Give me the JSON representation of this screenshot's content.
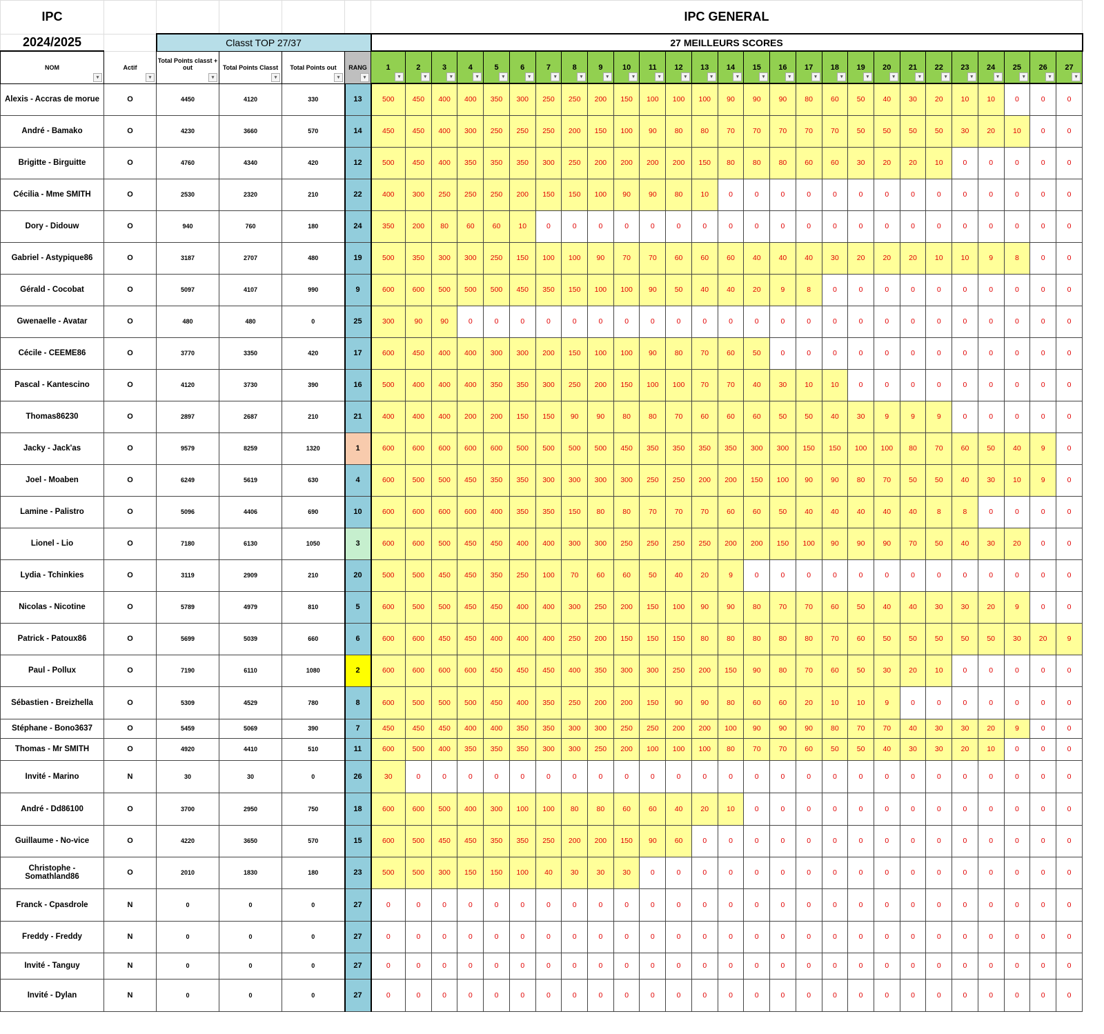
{
  "title": "IPC",
  "season": "2024/2025",
  "general_title": "IPC GENERAL",
  "classt_label": "Classt TOP 27/37",
  "best_label": "27 MEILLEURS SCORES",
  "headers": {
    "nom": "NOM",
    "actif": "Actif",
    "total_out": "Total Points classt + out",
    "classt": "Total Points Classt",
    "out": "Total Points out",
    "rang": "RANG",
    "scores": [
      "1",
      "2",
      "3",
      "4",
      "5",
      "6",
      "7",
      "8",
      "9",
      "10",
      "11",
      "12",
      "13",
      "14",
      "15",
      "16",
      "17",
      "18",
      "19",
      "20",
      "21",
      "22",
      "23",
      "24",
      "25",
      "26",
      "27"
    ]
  },
  "colors": {
    "score_header": "#92d050",
    "rang_header": "#bfbfbf",
    "rang": "#92cddc",
    "rank1": "#f8cbad",
    "rank2": "#ffff00",
    "rank3": "#c6efce",
    "score_filled": "#ffff99",
    "score_text": "#e00000",
    "classt_band": "#b7dee8"
  },
  "rows": [
    {
      "name": "Alexis - Accras de morue",
      "actif": "O",
      "total": "4450",
      "classt": "4120",
      "out": "330",
      "rang": "13",
      "scores": [
        500,
        450,
        400,
        400,
        350,
        300,
        250,
        250,
        200,
        150,
        100,
        100,
        100,
        90,
        90,
        90,
        80,
        60,
        50,
        40,
        30,
        20,
        10,
        10,
        0,
        0,
        0
      ]
    },
    {
      "name": "André - Bamako",
      "actif": "O",
      "total": "4230",
      "classt": "3660",
      "out": "570",
      "rang": "14",
      "scores": [
        450,
        450,
        400,
        300,
        250,
        250,
        250,
        200,
        150,
        100,
        90,
        80,
        80,
        70,
        70,
        70,
        70,
        70,
        50,
        50,
        50,
        50,
        30,
        20,
        10,
        0,
        0
      ]
    },
    {
      "name": "Brigitte - Birguitte",
      "actif": "O",
      "total": "4760",
      "classt": "4340",
      "out": "420",
      "rang": "12",
      "scores": [
        500,
        450,
        400,
        350,
        350,
        350,
        300,
        250,
        200,
        200,
        200,
        200,
        150,
        80,
        80,
        80,
        60,
        60,
        30,
        20,
        20,
        10,
        0,
        0,
        0,
        0,
        0
      ]
    },
    {
      "name": "Cécilia - Mme SMITH",
      "actif": "O",
      "total": "2530",
      "classt": "2320",
      "out": "210",
      "rang": "22",
      "scores": [
        400,
        300,
        250,
        250,
        250,
        200,
        150,
        150,
        100,
        90,
        90,
        80,
        10,
        0,
        0,
        0,
        0,
        0,
        0,
        0,
        0,
        0,
        0,
        0,
        0,
        0,
        0
      ]
    },
    {
      "name": "Dory - Didouw",
      "actif": "O",
      "total": "940",
      "classt": "760",
      "out": "180",
      "rang": "24",
      "scores": [
        350,
        200,
        80,
        60,
        60,
        10,
        0,
        0,
        0,
        0,
        0,
        0,
        0,
        0,
        0,
        0,
        0,
        0,
        0,
        0,
        0,
        0,
        0,
        0,
        0,
        0,
        0
      ]
    },
    {
      "name": "Gabriel - Astypique86",
      "actif": "O",
      "total": "3187",
      "classt": "2707",
      "out": "480",
      "rang": "19",
      "scores": [
        500,
        350,
        300,
        300,
        250,
        150,
        100,
        100,
        90,
        70,
        70,
        60,
        60,
        60,
        40,
        40,
        40,
        30,
        20,
        20,
        20,
        10,
        10,
        9,
        8,
        0,
        0
      ]
    },
    {
      "name": "Gérald - Cocobat",
      "actif": "O",
      "total": "5097",
      "classt": "4107",
      "out": "990",
      "rang": "9",
      "scores": [
        600,
        600,
        500,
        500,
        500,
        450,
        350,
        150,
        100,
        100,
        90,
        50,
        40,
        40,
        20,
        9,
        8,
        0,
        0,
        0,
        0,
        0,
        0,
        0,
        0,
        0,
        0
      ]
    },
    {
      "name": "Gwenaelle - Avatar",
      "actif": "O",
      "total": "480",
      "classt": "480",
      "out": "0",
      "rang": "25",
      "scores": [
        300,
        90,
        90,
        0,
        0,
        0,
        0,
        0,
        0,
        0,
        0,
        0,
        0,
        0,
        0,
        0,
        0,
        0,
        0,
        0,
        0,
        0,
        0,
        0,
        0,
        0,
        0
      ]
    },
    {
      "name": "Cécile - CEEME86",
      "actif": "O",
      "total": "3770",
      "classt": "3350",
      "out": "420",
      "rang": "17",
      "scores": [
        600,
        450,
        400,
        400,
        300,
        300,
        200,
        150,
        100,
        100,
        90,
        80,
        70,
        60,
        50,
        0,
        0,
        0,
        0,
        0,
        0,
        0,
        0,
        0,
        0,
        0,
        0
      ]
    },
    {
      "name": "Pascal - Kantescino",
      "actif": "O",
      "total": "4120",
      "classt": "3730",
      "out": "390",
      "rang": "16",
      "scores": [
        500,
        400,
        400,
        400,
        350,
        350,
        300,
        250,
        200,
        150,
        100,
        100,
        70,
        70,
        40,
        30,
        10,
        10,
        0,
        0,
        0,
        0,
        0,
        0,
        0,
        0,
        0
      ]
    },
    {
      "name": "Thomas86230",
      "actif": "O",
      "total": "2897",
      "classt": "2687",
      "out": "210",
      "rang": "21",
      "scores": [
        400,
        400,
        400,
        200,
        200,
        150,
        150,
        90,
        90,
        80,
        80,
        70,
        60,
        60,
        60,
        50,
        50,
        40,
        30,
        9,
        9,
        9,
        0,
        0,
        0,
        0,
        0
      ]
    },
    {
      "name": "Jacky - Jack'as",
      "actif": "O",
      "total": "9579",
      "classt": "8259",
      "out": "1320",
      "rang": "1",
      "scores": [
        600,
        600,
        600,
        600,
        600,
        500,
        500,
        500,
        500,
        450,
        350,
        350,
        350,
        350,
        300,
        300,
        150,
        150,
        100,
        100,
        80,
        70,
        60,
        50,
        40,
        9,
        0
      ]
    },
    {
      "name": "Joel - Moaben",
      "actif": "O",
      "total": "6249",
      "classt": "5619",
      "out": "630",
      "rang": "4",
      "scores": [
        600,
        500,
        500,
        450,
        350,
        350,
        300,
        300,
        300,
        300,
        250,
        250,
        200,
        200,
        150,
        100,
        90,
        90,
        80,
        70,
        50,
        50,
        40,
        30,
        10,
        9,
        0
      ]
    },
    {
      "name": "Lamine - Palistro",
      "actif": "O",
      "total": "5096",
      "classt": "4406",
      "out": "690",
      "rang": "10",
      "scores": [
        600,
        600,
        600,
        600,
        400,
        350,
        350,
        150,
        80,
        80,
        70,
        70,
        70,
        60,
        60,
        50,
        40,
        40,
        40,
        40,
        40,
        8,
        8,
        0,
        0,
        0,
        0
      ]
    },
    {
      "name": "Lionel - Lio",
      "actif": "O",
      "total": "7180",
      "classt": "6130",
      "out": "1050",
      "rang": "3",
      "scores": [
        600,
        600,
        500,
        450,
        450,
        400,
        400,
        300,
        300,
        250,
        250,
        250,
        250,
        200,
        200,
        150,
        100,
        90,
        90,
        90,
        70,
        50,
        40,
        30,
        20,
        0,
        0
      ]
    },
    {
      "name": "Lydia - Tchinkies",
      "actif": "O",
      "total": "3119",
      "classt": "2909",
      "out": "210",
      "rang": "20",
      "scores": [
        500,
        500,
        450,
        450,
        350,
        250,
        100,
        70,
        60,
        60,
        50,
        40,
        20,
        9,
        0,
        0,
        0,
        0,
        0,
        0,
        0,
        0,
        0,
        0,
        0,
        0,
        0
      ]
    },
    {
      "name": "Nicolas - Nicotine",
      "actif": "O",
      "total": "5789",
      "classt": "4979",
      "out": "810",
      "rang": "5",
      "scores": [
        600,
        500,
        500,
        450,
        450,
        400,
        400,
        300,
        250,
        200,
        150,
        100,
        90,
        90,
        80,
        70,
        70,
        60,
        50,
        40,
        40,
        30,
        30,
        20,
        9,
        0,
        0
      ]
    },
    {
      "name": "Patrick - Patoux86",
      "actif": "O",
      "total": "5699",
      "classt": "5039",
      "out": "660",
      "rang": "6",
      "scores": [
        600,
        600,
        450,
        450,
        400,
        400,
        400,
        250,
        200,
        150,
        150,
        150,
        80,
        80,
        80,
        80,
        80,
        70,
        60,
        50,
        50,
        50,
        50,
        50,
        30,
        20,
        9
      ]
    },
    {
      "name": "Paul - Pollux",
      "actif": "O",
      "total": "7190",
      "classt": "6110",
      "out": "1080",
      "rang": "2",
      "scores": [
        600,
        600,
        600,
        600,
        450,
        450,
        450,
        400,
        350,
        300,
        300,
        250,
        200,
        150,
        90,
        80,
        70,
        60,
        50,
        30,
        20,
        10,
        0,
        0,
        0,
        0,
        0
      ]
    },
    {
      "name": "Sébastien - Breizhella",
      "actif": "O",
      "total": "5309",
      "classt": "4529",
      "out": "780",
      "rang": "8",
      "scores": [
        600,
        500,
        500,
        500,
        450,
        400,
        350,
        250,
        200,
        200,
        150,
        90,
        90,
        80,
        60,
        60,
        20,
        10,
        10,
        9,
        0,
        0,
        0,
        0,
        0,
        0,
        0
      ]
    },
    {
      "name": "Stéphane - Bono3637",
      "actif": "O",
      "total": "5459",
      "classt": "5069",
      "out": "390",
      "rang": "7",
      "scores": [
        450,
        450,
        450,
        400,
        400,
        350,
        350,
        300,
        300,
        250,
        250,
        200,
        200,
        100,
        90,
        90,
        90,
        80,
        70,
        70,
        40,
        30,
        30,
        20,
        9,
        0,
        0
      ]
    },
    {
      "name": "Thomas - Mr SMITH",
      "actif": "O",
      "total": "4920",
      "classt": "4410",
      "out": "510",
      "rang": "11",
      "scores": [
        600,
        500,
        400,
        350,
        350,
        350,
        300,
        300,
        250,
        200,
        100,
        100,
        100,
        80,
        70,
        70,
        60,
        50,
        50,
        40,
        30,
        30,
        20,
        10,
        0,
        0,
        0
      ]
    },
    {
      "name": "Invité - Marino",
      "actif": "N",
      "total": "30",
      "classt": "30",
      "out": "0",
      "rang": "26",
      "scores": [
        30,
        0,
        0,
        0,
        0,
        0,
        0,
        0,
        0,
        0,
        0,
        0,
        0,
        0,
        0,
        0,
        0,
        0,
        0,
        0,
        0,
        0,
        0,
        0,
        0,
        0,
        0
      ]
    },
    {
      "name": "André - Dd86100",
      "actif": "O",
      "total": "3700",
      "classt": "2950",
      "out": "750",
      "rang": "18",
      "scores": [
        600,
        600,
        500,
        400,
        300,
        100,
        100,
        80,
        80,
        60,
        60,
        40,
        20,
        10,
        0,
        0,
        0,
        0,
        0,
        0,
        0,
        0,
        0,
        0,
        0,
        0,
        0
      ]
    },
    {
      "name": "Guillaume - No-vice",
      "actif": "O",
      "total": "4220",
      "classt": "3650",
      "out": "570",
      "rang": "15",
      "scores": [
        600,
        500,
        450,
        450,
        350,
        350,
        250,
        200,
        200,
        150,
        90,
        60,
        0,
        0,
        0,
        0,
        0,
        0,
        0,
        0,
        0,
        0,
        0,
        0,
        0,
        0,
        0
      ]
    },
    {
      "name": "Christophe - Somathland86",
      "actif": "O",
      "total": "2010",
      "classt": "1830",
      "out": "180",
      "rang": "23",
      "scores": [
        500,
        500,
        300,
        150,
        150,
        100,
        40,
        30,
        30,
        30,
        0,
        0,
        0,
        0,
        0,
        0,
        0,
        0,
        0,
        0,
        0,
        0,
        0,
        0,
        0,
        0,
        0
      ]
    },
    {
      "name": "Franck - Cpasdrole",
      "actif": "N",
      "total": "0",
      "classt": "0",
      "out": "0",
      "rang": "27",
      "scores": [
        0,
        0,
        0,
        0,
        0,
        0,
        0,
        0,
        0,
        0,
        0,
        0,
        0,
        0,
        0,
        0,
        0,
        0,
        0,
        0,
        0,
        0,
        0,
        0,
        0,
        0,
        0
      ]
    },
    {
      "name": "Freddy - Freddy",
      "actif": "N",
      "total": "0",
      "classt": "0",
      "out": "0",
      "rang": "27",
      "scores": [
        0,
        0,
        0,
        0,
        0,
        0,
        0,
        0,
        0,
        0,
        0,
        0,
        0,
        0,
        0,
        0,
        0,
        0,
        0,
        0,
        0,
        0,
        0,
        0,
        0,
        0,
        0
      ]
    },
    {
      "name": "Invité - Tanguy",
      "actif": "N",
      "total": "0",
      "classt": "0",
      "out": "0",
      "rang": "27",
      "scores": [
        0,
        0,
        0,
        0,
        0,
        0,
        0,
        0,
        0,
        0,
        0,
        0,
        0,
        0,
        0,
        0,
        0,
        0,
        0,
        0,
        0,
        0,
        0,
        0,
        0,
        0,
        0
      ]
    },
    {
      "name": "Invité - Dylan",
      "actif": "N",
      "total": "0",
      "classt": "0",
      "out": "0",
      "rang": "27",
      "scores": [
        0,
        0,
        0,
        0,
        0,
        0,
        0,
        0,
        0,
        0,
        0,
        0,
        0,
        0,
        0,
        0,
        0,
        0,
        0,
        0,
        0,
        0,
        0,
        0,
        0,
        0,
        0
      ]
    }
  ]
}
